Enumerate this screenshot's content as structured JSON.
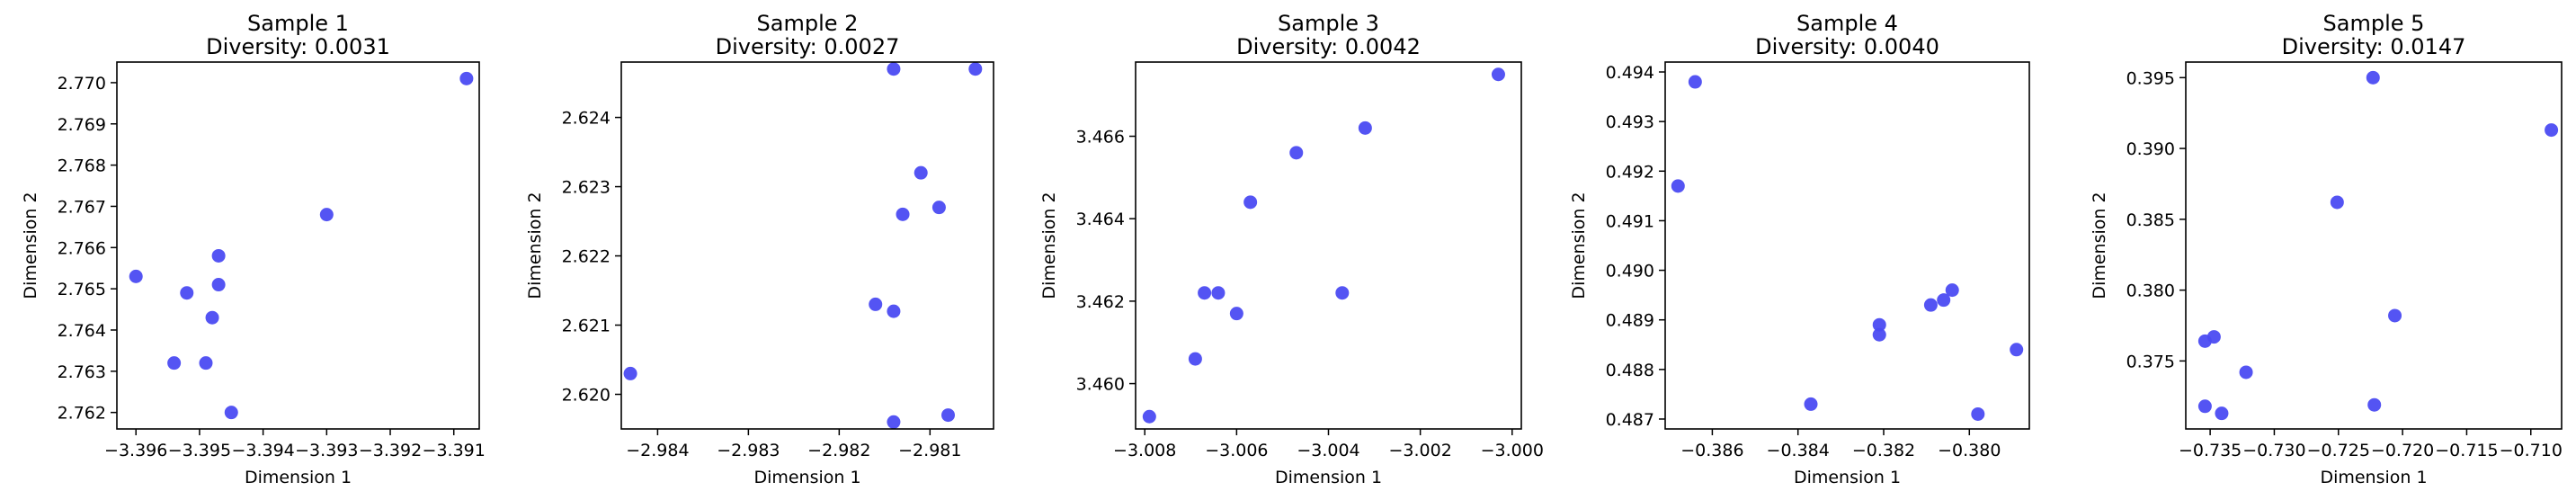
{
  "chart_data": [
    {
      "type": "scatter",
      "title": "Sample 1",
      "subtitle": "Diversity: 0.0031",
      "xlabel": "Dimension 1",
      "ylabel": "Dimension 2",
      "xlim": [
        -3.3963,
        -3.3906
      ],
      "ylim": [
        2.7616,
        2.7705
      ],
      "xticks": [
        -3.396,
        -3.395,
        -3.394,
        -3.393,
        -3.392,
        -3.391
      ],
      "xtick_labels": [
        "−3.396",
        "−3.395",
        "−3.394",
        "−3.393",
        "−3.392",
        "−3.391"
      ],
      "yticks": [
        2.762,
        2.763,
        2.764,
        2.765,
        2.766,
        2.767,
        2.768,
        2.769,
        2.77
      ],
      "ytick_labels": [
        "2.762",
        "2.763",
        "2.764",
        "2.765",
        "2.766",
        "2.767",
        "2.768",
        "2.769",
        "2.770"
      ],
      "x": [
        -3.396,
        -3.3952,
        -3.3947,
        -3.3947,
        -3.3948,
        -3.3945,
        -3.3954,
        -3.3949,
        -3.393,
        -3.3908
      ],
      "y": [
        2.7653,
        2.7649,
        2.7658,
        2.7651,
        2.7643,
        2.762,
        2.7632,
        2.7632,
        2.7668,
        2.7701
      ],
      "color": "#4b4bf2",
      "grid": false
    },
    {
      "type": "scatter",
      "title": "Sample 2",
      "subtitle": "Diversity: 0.0027",
      "xlabel": "Dimension 1",
      "ylabel": "Dimension 2",
      "xlim": [
        -2.9844,
        -2.9803
      ],
      "ylim": [
        2.6195,
        2.6248
      ],
      "xticks": [
        -2.984,
        -2.983,
        -2.982,
        -2.981
      ],
      "xtick_labels": [
        "−2.984",
        "−2.983",
        "−2.982",
        "−2.981"
      ],
      "yticks": [
        2.62,
        2.621,
        2.622,
        2.623,
        2.624
      ],
      "ytick_labels": [
        "2.620",
        "2.621",
        "2.622",
        "2.623",
        "2.624"
      ],
      "x": [
        -2.9843,
        -2.9814,
        -2.9813,
        -2.9816,
        -2.9814,
        -2.9814,
        -2.9811,
        -2.9809,
        -2.9808,
        -2.9805
      ],
      "y": [
        2.6203,
        2.6247,
        2.6226,
        2.6213,
        2.6212,
        2.6196,
        2.6232,
        2.6227,
        2.6197,
        2.6247
      ],
      "color": "#4b4bf2",
      "grid": false
    },
    {
      "type": "scatter",
      "title": "Sample 3",
      "subtitle": "Diversity: 0.0042",
      "xlabel": "Dimension 1",
      "ylabel": "Dimension 2",
      "xlim": [
        -3.0082,
        -2.9998
      ],
      "ylim": [
        3.4589,
        3.4678
      ],
      "xticks": [
        -3.008,
        -3.006,
        -3.004,
        -3.002,
        -3.0
      ],
      "xtick_labels": [
        "−3.008",
        "−3.006",
        "−3.004",
        "−3.002",
        "−3.000"
      ],
      "yticks": [
        3.46,
        3.462,
        3.464,
        3.466
      ],
      "ytick_labels": [
        "3.460",
        "3.462",
        "3.464",
        "3.466"
      ],
      "x": [
        -3.0079,
        -3.0069,
        -3.0067,
        -3.0064,
        -3.006,
        -3.0057,
        -3.0047,
        -3.0037,
        -3.0032,
        -3.0003
      ],
      "y": [
        3.4592,
        3.4606,
        3.4622,
        3.4622,
        3.4617,
        3.4644,
        3.4656,
        3.4622,
        3.4662,
        3.4675
      ],
      "color": "#4b4bf2",
      "grid": false
    },
    {
      "type": "scatter",
      "title": "Sample 4",
      "subtitle": "Diversity: 0.0040",
      "xlabel": "Dimension 1",
      "ylabel": "Dimension 2",
      "xlim": [
        -0.3871,
        -0.3786
      ],
      "ylim": [
        0.4868,
        0.4942
      ],
      "xticks": [
        -0.386,
        -0.384,
        -0.382,
        -0.38
      ],
      "xtick_labels": [
        "−0.386",
        "−0.384",
        "−0.382",
        "−0.380"
      ],
      "yticks": [
        0.487,
        0.488,
        0.489,
        0.49,
        0.491,
        0.492,
        0.493,
        0.494
      ],
      "ytick_labels": [
        "0.487",
        "0.488",
        "0.489",
        "0.490",
        "0.491",
        "0.492",
        "0.493",
        "0.494"
      ],
      "x": [
        -0.3868,
        -0.3864,
        -0.3837,
        -0.3821,
        -0.3821,
        -0.3809,
        -0.3806,
        -0.3804,
        -0.3798,
        -0.3789
      ],
      "y": [
        0.4917,
        0.4938,
        0.4873,
        0.4889,
        0.4887,
        0.4893,
        0.4894,
        0.4896,
        0.4871,
        0.4884
      ],
      "color": "#4b4bf2",
      "grid": false
    },
    {
      "type": "scatter",
      "title": "Sample 5",
      "subtitle": "Diversity: 0.0147",
      "xlabel": "Dimension 1",
      "ylabel": "Dimension 2",
      "xlim": [
        -0.7369,
        -0.7076
      ],
      "ylim": [
        0.3702,
        0.3961
      ],
      "xticks": [
        -0.735,
        -0.73,
        -0.725,
        -0.72,
        -0.715,
        -0.71
      ],
      "xtick_labels": [
        "−0.735",
        "−0.730",
        "−0.725",
        "−0.720",
        "−0.715",
        "−0.710"
      ],
      "yticks": [
        0.375,
        0.38,
        0.385,
        0.39,
        0.395
      ],
      "ytick_labels": [
        "0.375",
        "0.380",
        "0.385",
        "0.390",
        "0.395"
      ],
      "x": [
        -0.7354,
        -0.7354,
        -0.7347,
        -0.7341,
        -0.7322,
        -0.7251,
        -0.7223,
        -0.7222,
        -0.7206,
        -0.7084
      ],
      "y": [
        0.3764,
        0.3718,
        0.3767,
        0.3713,
        0.3742,
        0.3862,
        0.395,
        0.3719,
        0.3782,
        0.3913
      ],
      "color": "#4b4bf2",
      "grid": false
    }
  ]
}
